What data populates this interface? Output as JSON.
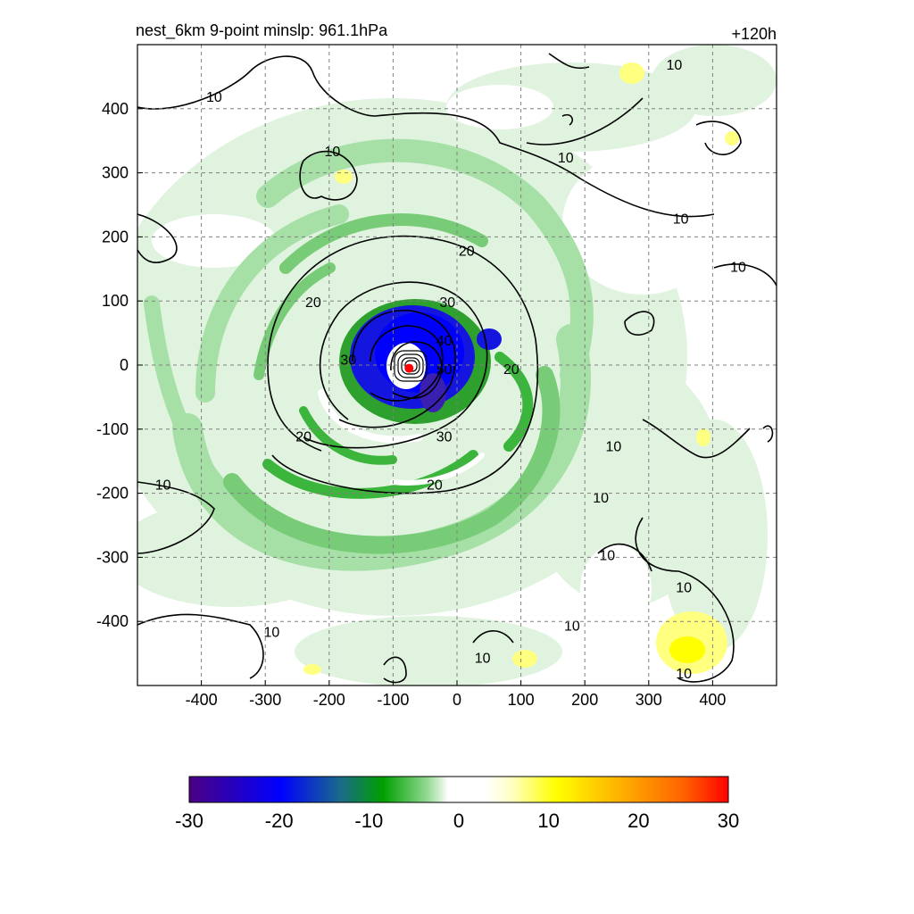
{
  "chart_data": {
    "type": "heatmap",
    "title": "nest_6km  9-point minslp: 961.1hPa",
    "time_label": "+120h",
    "xlim": [
      -500,
      500
    ],
    "ylim": [
      -500,
      500
    ],
    "x_ticks": [
      -400,
      -300,
      -200,
      -100,
      0,
      100,
      200,
      300,
      400
    ],
    "y_ticks": [
      400,
      300,
      200,
      100,
      0,
      -100,
      -200,
      -300,
      -400
    ],
    "grid": true,
    "center": {
      "x": -75,
      "y": -5,
      "color": "#ff0000"
    },
    "colorbar": {
      "range": [
        -30,
        30
      ],
      "ticks": [
        -30,
        -20,
        -10,
        0,
        10,
        20,
        30
      ],
      "colors": [
        "#4b0082",
        "#0000ff",
        "#00a000",
        "#ffffff",
        "#ffff00",
        "#ff8c00",
        "#ff0000"
      ]
    },
    "contour_labels": [
      {
        "text": "10",
        "x": -380,
        "y": 415
      },
      {
        "text": "10",
        "x": -195,
        "y": 330
      },
      {
        "text": "10",
        "x": 170,
        "y": 320
      },
      {
        "text": "10",
        "x": 350,
        "y": 225
      },
      {
        "text": "10",
        "x": 440,
        "y": 150
      },
      {
        "text": "10",
        "x": 340,
        "y": 465
      },
      {
        "text": "20",
        "x": 15,
        "y": 175
      },
      {
        "text": "20",
        "x": -225,
        "y": 95
      },
      {
        "text": "30",
        "x": -15,
        "y": 95
      },
      {
        "text": "30",
        "x": -170,
        "y": 5
      },
      {
        "text": "40",
        "x": -20,
        "y": 35
      },
      {
        "text": "50",
        "x": -20,
        "y": -10
      },
      {
        "text": "20",
        "x": 85,
        "y": -10
      },
      {
        "text": "20",
        "x": -240,
        "y": -115
      },
      {
        "text": "30",
        "x": -20,
        "y": -115
      },
      {
        "text": "20",
        "x": -35,
        "y": -190
      },
      {
        "text": "10",
        "x": -460,
        "y": -190
      },
      {
        "text": "10",
        "x": 245,
        "y": -130
      },
      {
        "text": "10",
        "x": 225,
        "y": -210
      },
      {
        "text": "10",
        "x": 235,
        "y": -300
      },
      {
        "text": "10",
        "x": 355,
        "y": -350
      },
      {
        "text": "10",
        "x": 180,
        "y": -410
      },
      {
        "text": "10",
        "x": -290,
        "y": -420
      },
      {
        "text": "10",
        "x": 40,
        "y": -460
      },
      {
        "text": "10",
        "x": 355,
        "y": -485
      }
    ]
  }
}
